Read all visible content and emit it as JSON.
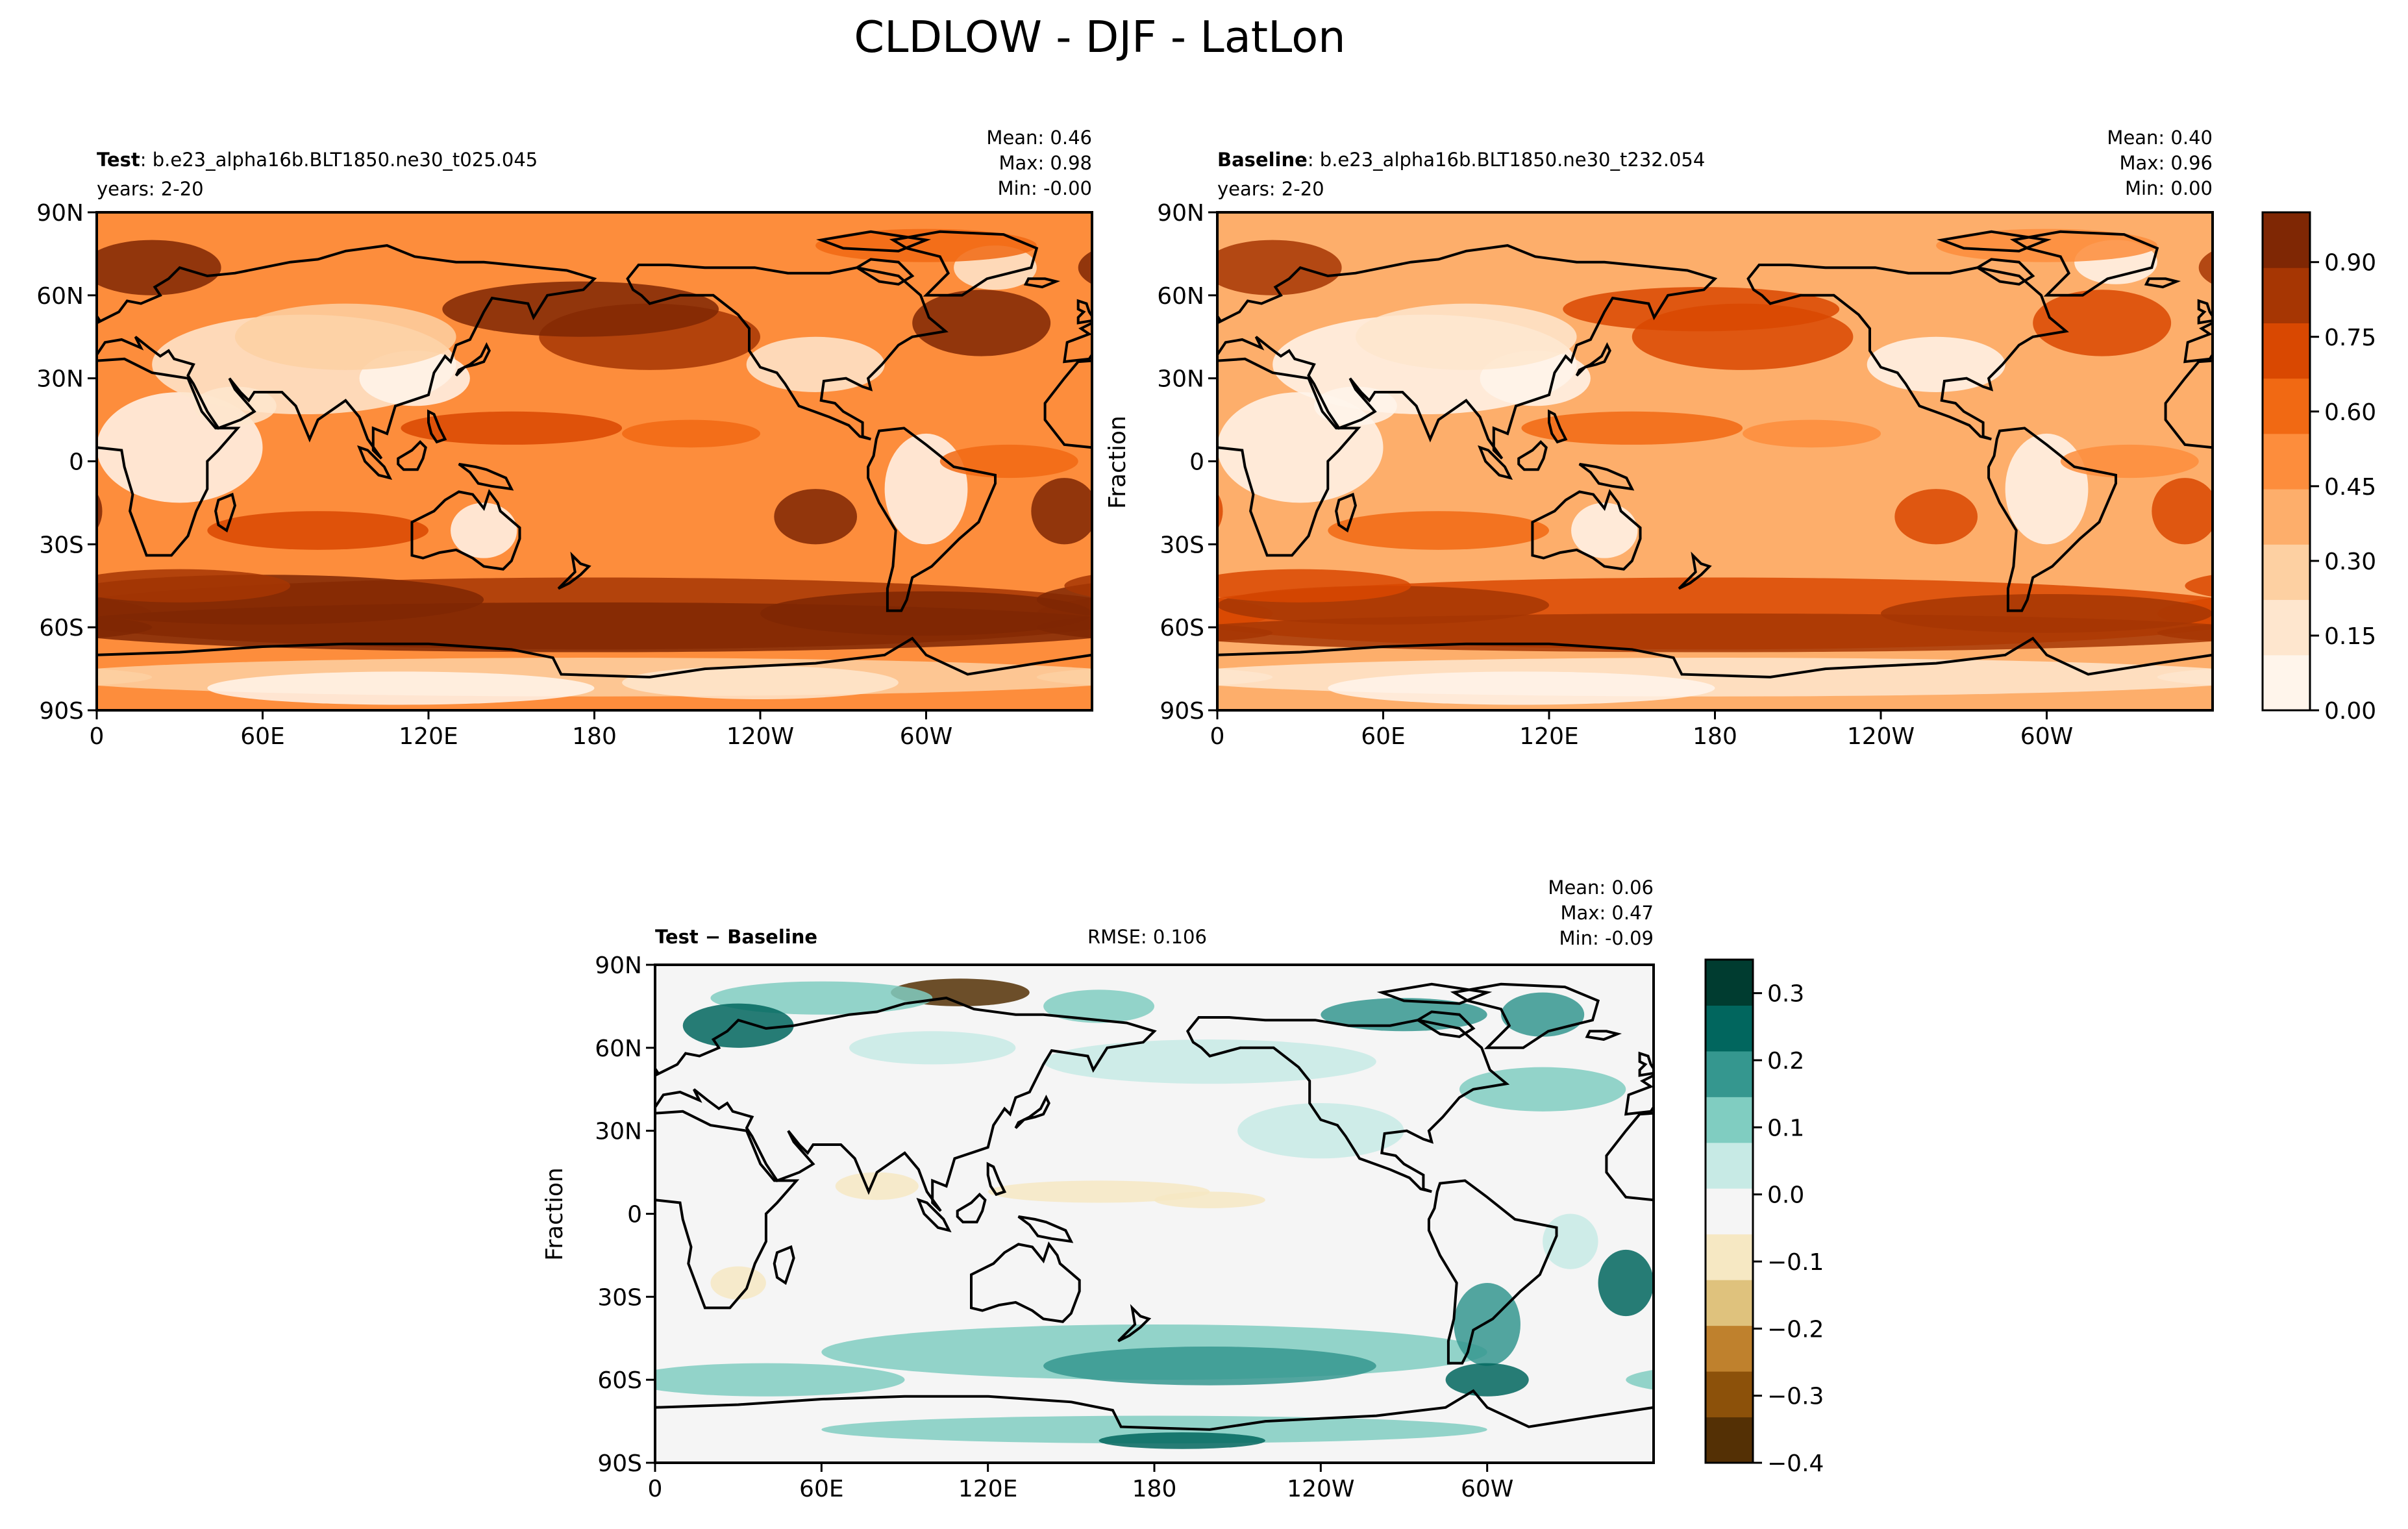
{
  "figure": {
    "title": "CLDLOW - DJF - LatLon"
  },
  "panels": [
    {
      "id": "test",
      "label_bold": "Test",
      "label_rest": ": b.e23_alpha16b.BLT1850.ne30_t025.045",
      "years": "years: 2-20",
      "stats": [
        "Mean:  0.46",
        "Max:  0.98",
        "Min: -0.00"
      ],
      "ylabel": ""
    },
    {
      "id": "baseline",
      "label_bold": "Baseline",
      "label_rest": ": b.e23_alpha16b.BLT1850.ne30_t232.054",
      "years": "years: 2-20",
      "stats": [
        "Mean:  0.40",
        "Max:  0.96",
        "Min:  0.00"
      ],
      "ylabel": "Fraction"
    },
    {
      "id": "diff",
      "label_bold": "Test − Baseline",
      "label_rest": "",
      "rmse": "RMSE: 0.106",
      "stats": [
        "Mean:  0.06",
        "Max:  0.47",
        "Min: -0.09"
      ],
      "ylabel": "Fraction"
    }
  ],
  "axes": {
    "xticks": [
      "0",
      "60E",
      "120E",
      "180",
      "120W",
      "60W"
    ],
    "yticks": [
      "90N",
      "60N",
      "30N",
      "0",
      "30S",
      "60S",
      "90S"
    ]
  },
  "colorbars": [
    {
      "id": "fraction",
      "tick_labels": [
        "0.90",
        "0.75",
        "0.60",
        "0.45",
        "0.30",
        "0.15",
        "0.00"
      ],
      "tick_values": [
        0.9,
        0.75,
        0.6,
        0.45,
        0.3,
        0.15,
        0.0
      ],
      "range": [
        0.0,
        1.0
      ],
      "colors": [
        "#fff5eb",
        "#fee6ce",
        "#fdd0a2",
        "#fdae6b",
        "#fd8d3c",
        "#f16913",
        "#d94801",
        "#a63603",
        "#7f2704"
      ]
    },
    {
      "id": "difference",
      "tick_labels": [
        "0.3",
        "0.2",
        "0.1",
        "0.0",
        "−0.1",
        "−0.2",
        "−0.3",
        "−0.4"
      ],
      "tick_values": [
        0.3,
        0.2,
        0.1,
        0.0,
        -0.1,
        -0.2,
        -0.3,
        -0.4
      ],
      "range": [
        -0.4,
        0.35
      ],
      "colors": [
        "#543005",
        "#8c510a",
        "#bf812d",
        "#dfc27d",
        "#f6e8c3",
        "#f5f5f5",
        "#c7eae5",
        "#80cdc1",
        "#35978f",
        "#01665e",
        "#003c30"
      ]
    }
  ],
  "chart_data": {
    "type": "heatmap",
    "title": "CLDLOW - DJF - LatLon",
    "xlabel": "",
    "ylabel": "Fraction",
    "x_range": [
      0,
      360
    ],
    "y_range": [
      -90,
      90
    ],
    "x_ticks": [
      0,
      60,
      120,
      180,
      240,
      300
    ],
    "y_ticks": [
      90,
      60,
      30,
      0,
      -30,
      -60,
      -90
    ],
    "fields": [
      {
        "panel": "test",
        "mean": 0.46,
        "max": 0.98,
        "min": -0.0
      },
      {
        "panel": "baseline",
        "mean": 0.4,
        "max": 0.96,
        "min": 0.0
      },
      {
        "panel": "diff",
        "mean": 0.06,
        "max": 0.47,
        "min": -0.09,
        "rmse": 0.106
      }
    ]
  }
}
